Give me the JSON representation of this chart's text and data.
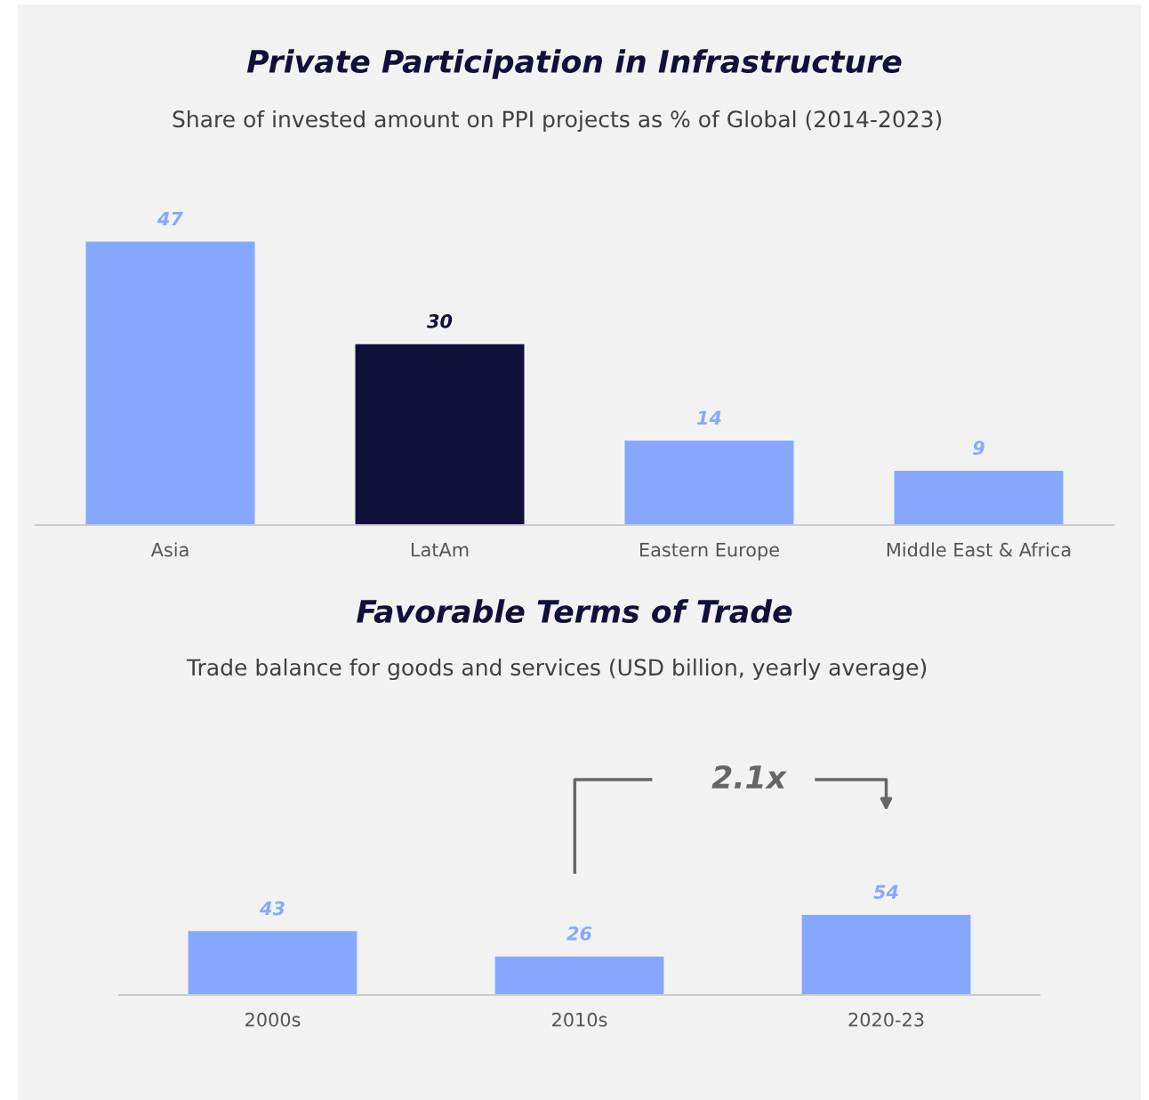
{
  "chart_data": [
    {
      "type": "bar",
      "title": "Private Participation in Infrastructure",
      "subtitle": "Share of invested amount on PPI projects as % of Global (2014-2023)",
      "categories": [
        "Asia",
        "LatAm",
        "Eastern Europe",
        "Middle East & Africa"
      ],
      "values": [
        47,
        30,
        14,
        9
      ],
      "colors": [
        "#86a8ff",
        "#11103a",
        "#86a8ff",
        "#86a8ff"
      ],
      "data_labels": true
    },
    {
      "type": "bar",
      "title": "Favorable Terms of Trade",
      "subtitle": "Trade balance for goods and services (USD billion, yearly average)",
      "categories": [
        "2000s",
        "2010s",
        "2020-23"
      ],
      "values": [
        43,
        26,
        54
      ],
      "colors": [
        "#86a8ff",
        "#86a8ff",
        "#86a8ff"
      ],
      "data_labels": true,
      "annotations": [
        "2.1x"
      ]
    }
  ]
}
